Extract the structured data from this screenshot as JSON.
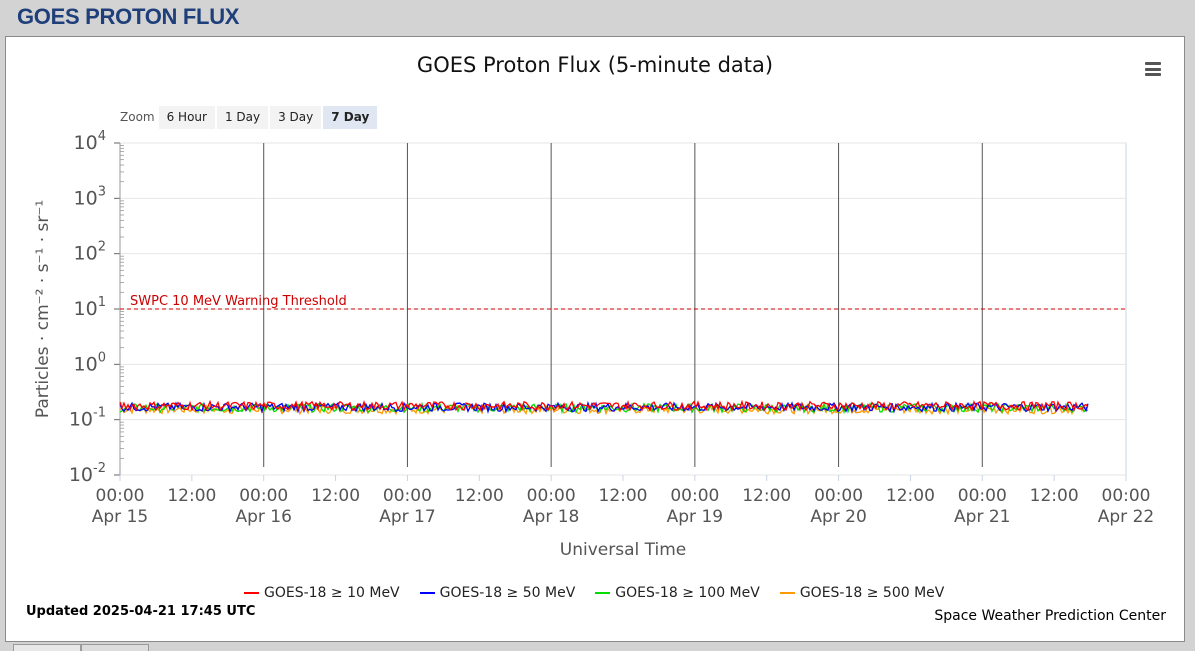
{
  "page": {
    "title": "GOES PROTON FLUX"
  },
  "chart": {
    "title": "GOES Proton Flux (5-minute data)",
    "menu_icon": "hamburger-menu-icon",
    "zoom": {
      "label": "Zoom",
      "buttons": [
        "6 Hour",
        "1 Day",
        "3 Day",
        "7 Day"
      ],
      "active": "7 Day"
    },
    "updated": "Updated 2025-04-21 17:45 UTC",
    "credit": "Space Weather Prediction Center"
  },
  "chart_data": {
    "type": "line",
    "title": "GOES Proton Flux (5-minute data)",
    "xlabel": "Universal Time",
    "ylabel": "Particles · cm⁻² · s⁻¹ · sr⁻¹",
    "y_scale": "log",
    "ylim": [
      0.01,
      10000
    ],
    "y_ticks": [
      {
        "base": "10",
        "exp": "-2"
      },
      {
        "base": "10",
        "exp": "-1"
      },
      {
        "base": "10",
        "exp": "0"
      },
      {
        "base": "10",
        "exp": "1"
      },
      {
        "base": "10",
        "exp": "2"
      },
      {
        "base": "10",
        "exp": "3"
      },
      {
        "base": "10",
        "exp": "4"
      }
    ],
    "xlim": [
      "2025-04-15 00:00",
      "2025-04-22 00:00"
    ],
    "x_ticks": [
      {
        "time": "00:00",
        "date": "Apr 15"
      },
      {
        "time": "12:00",
        "date": ""
      },
      {
        "time": "00:00",
        "date": "Apr 16"
      },
      {
        "time": "12:00",
        "date": ""
      },
      {
        "time": "00:00",
        "date": "Apr 17"
      },
      {
        "time": "12:00",
        "date": ""
      },
      {
        "time": "00:00",
        "date": "Apr 18"
      },
      {
        "time": "12:00",
        "date": ""
      },
      {
        "time": "00:00",
        "date": "Apr 19"
      },
      {
        "time": "12:00",
        "date": ""
      },
      {
        "time": "00:00",
        "date": "Apr 20"
      },
      {
        "time": "12:00",
        "date": ""
      },
      {
        "time": "00:00",
        "date": "Apr 21"
      },
      {
        "time": "12:00",
        "date": ""
      },
      {
        "time": "00:00",
        "date": "Apr 22"
      }
    ],
    "day_markers": [
      "2025-04-16 00:00",
      "2025-04-17 00:00",
      "2025-04-18 00:00",
      "2025-04-19 00:00",
      "2025-04-20 00:00",
      "2025-04-21 00:00"
    ],
    "threshold": {
      "label": "SWPC 10 MeV Warning Threshold",
      "value": 10,
      "color": "#cc0000"
    },
    "grid": true,
    "legend_position": "bottom",
    "series": [
      {
        "name": "GOES-18 ≥ 10 MeV",
        "color": "#ff0000",
        "level": 0.18,
        "start": "2025-04-15 00:00",
        "end": "2025-04-21 17:45"
      },
      {
        "name": "GOES-18 ≥ 50 MeV",
        "color": "#0000ff",
        "level": 0.17,
        "start": "2025-04-15 00:00",
        "end": "2025-04-21 17:45"
      },
      {
        "name": "GOES-18 ≥ 100 MeV",
        "color": "#00dd00",
        "level": 0.165,
        "start": "2025-04-15 00:00",
        "end": "2025-04-21 17:45"
      },
      {
        "name": "GOES-18 ≥ 500 MeV",
        "color": "#ff9900",
        "level": 0.155,
        "start": "2025-04-15 00:00",
        "end": "2025-04-21 17:45"
      }
    ]
  }
}
